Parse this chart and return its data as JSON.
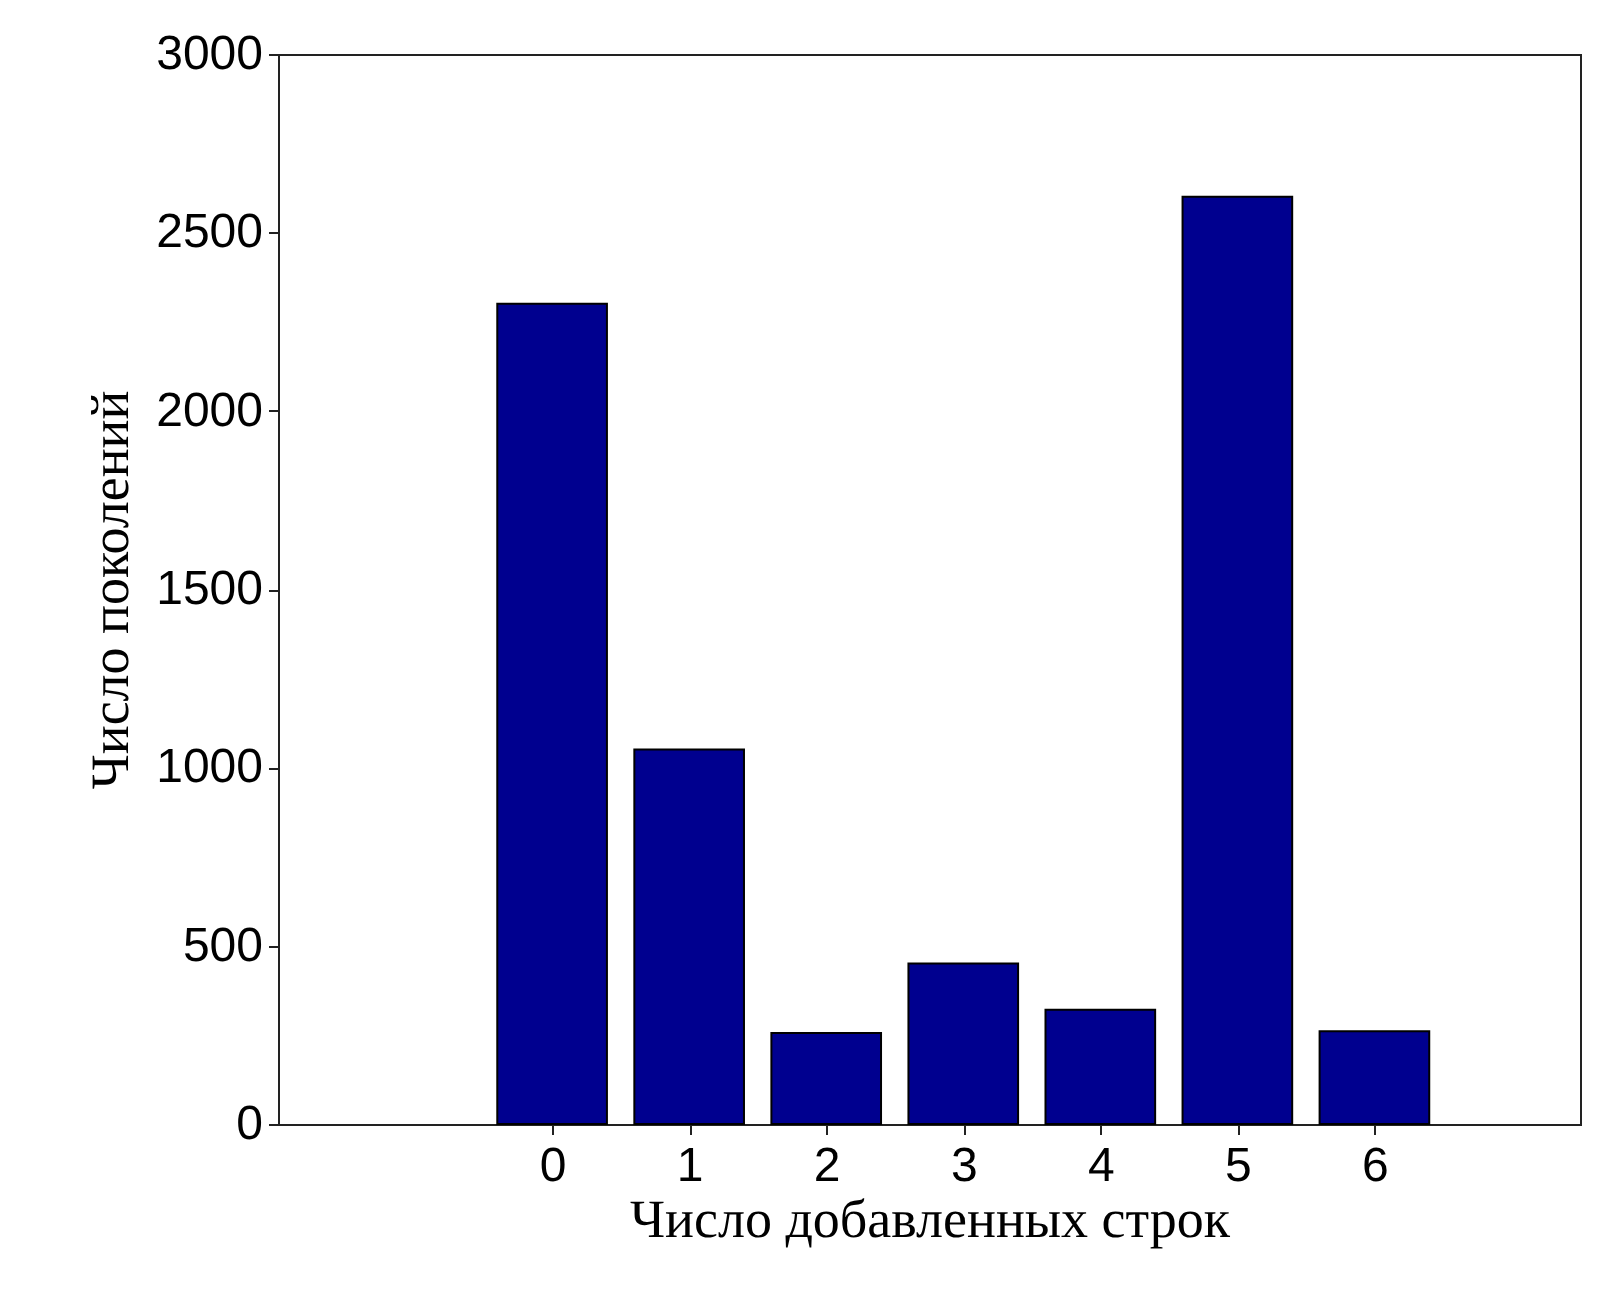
{
  "chart_data": {
    "type": "bar",
    "xlabel": "Число добавленных строк",
    "ylabel": "Число поколений",
    "x": [
      0,
      1,
      2,
      3,
      4,
      5,
      6
    ],
    "values": [
      2300,
      1050,
      255,
      450,
      320,
      2600,
      260
    ],
    "color": "#00008f",
    "xlim": [
      -2,
      7.5
    ],
    "xticks": [
      0,
      1,
      2,
      3,
      4,
      5,
      6
    ],
    "ylim": [
      0,
      3000
    ],
    "yticks": [
      0,
      500,
      1000,
      1500,
      2000,
      2500,
      3000
    ],
    "grid": false
  }
}
